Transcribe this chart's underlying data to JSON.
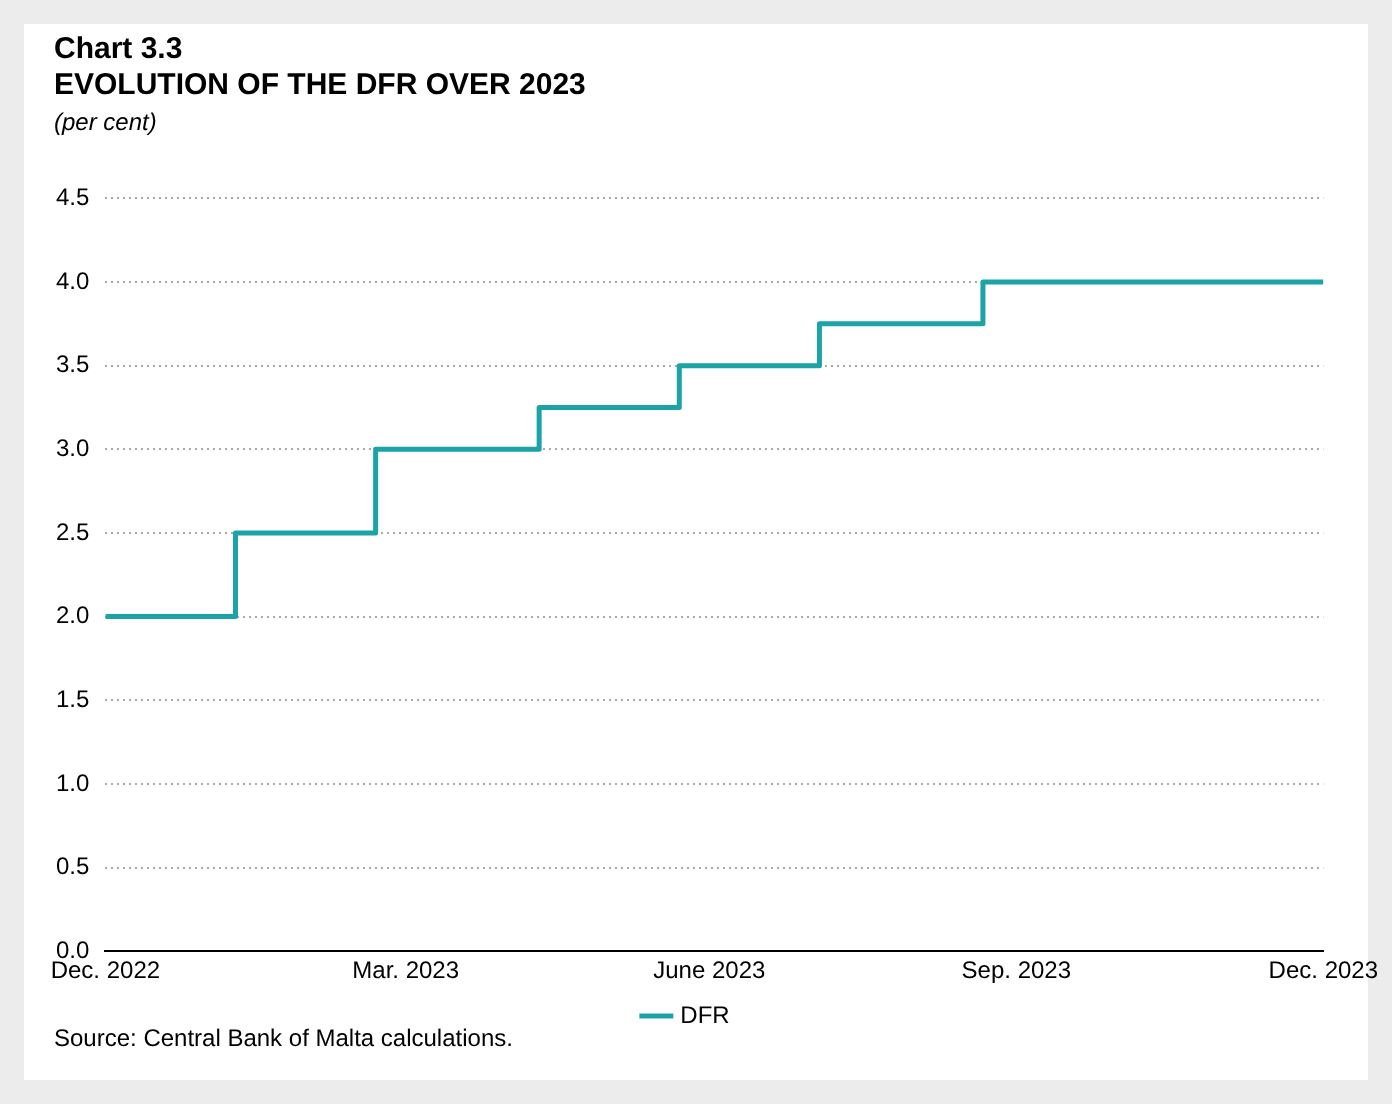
{
  "chart_data": {
    "type": "step",
    "title": "Chart 3.3",
    "subtitle": "EVOLUTION OF THE DFR OVER 2023",
    "ylabel": "(per cent)",
    "series": [
      {
        "name": "DFR",
        "color": "#1ba3a8",
        "x": [
          "2022-12-31",
          "2023-02-08",
          "2023-03-22",
          "2023-05-10",
          "2023-06-21",
          "2023-08-02",
          "2023-09-20",
          "2023-12-31"
        ],
        "values": [
          2.0,
          2.5,
          3.0,
          3.25,
          3.5,
          3.75,
          4.0,
          4.0
        ]
      }
    ],
    "xlim": [
      "2022-12-31",
      "2023-12-31"
    ],
    "xticks": [
      {
        "value": "2022-12-31",
        "label": "Dec. 2022"
      },
      {
        "value": "2023-03-31",
        "label": "Mar. 2023"
      },
      {
        "value": "2023-06-30",
        "label": "June 2023"
      },
      {
        "value": "2023-09-30",
        "label": "Sep. 2023"
      },
      {
        "value": "2023-12-31",
        "label": "Dec. 2023"
      }
    ],
    "ylim": [
      0,
      4.5
    ],
    "yticks": [
      {
        "value": 0,
        "label": "0.0"
      },
      0.5,
      {
        "value": 1,
        "label": "1.0"
      },
      1.5,
      {
        "value": 2,
        "label": "2.0"
      },
      2.5,
      {
        "value": 3,
        "label": "3.0"
      },
      3.5,
      {
        "value": 4,
        "label": "4.0"
      },
      4.5
    ],
    "grid": "y",
    "legend": "bottom",
    "marker": "none",
    "line_style": "solid",
    "annotations": [
      "Source: Central Bank of Malta calculations."
    ]
  }
}
